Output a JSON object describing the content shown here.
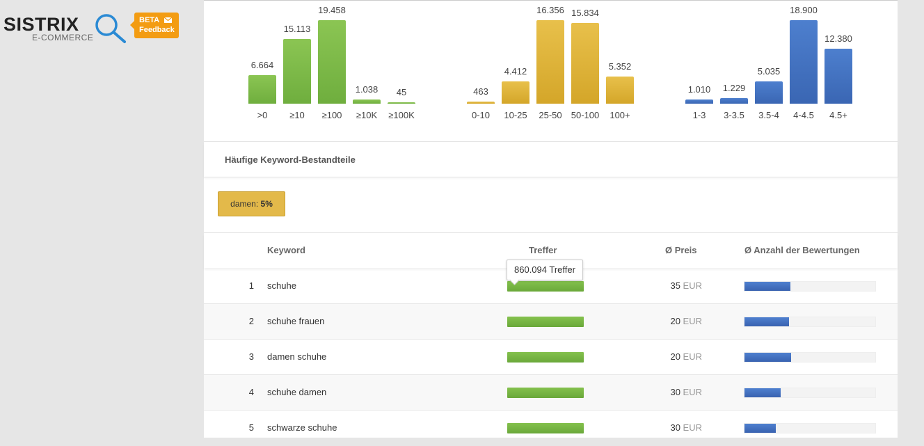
{
  "logo": {
    "name": "SISTRIX",
    "subtitle": "E-COMMERCE",
    "beta_label": "BETA",
    "feedback_label": "Feedback"
  },
  "chart_data": [
    {
      "type": "bar",
      "color": "#7ab648",
      "categories": [
        ">0",
        "≥10",
        "≥100",
        "≥10K",
        "≥100K"
      ],
      "values": [
        6664,
        15113,
        19458,
        1038,
        45
      ],
      "value_labels": [
        "6.664",
        "15.113",
        "19.458",
        "1.038",
        "45"
      ]
    },
    {
      "type": "bar",
      "color": "#deb33a",
      "categories": [
        "0-10",
        "10-25",
        "25-50",
        "50-100",
        "100+"
      ],
      "values": [
        463,
        4412,
        16356,
        15834,
        5352
      ],
      "value_labels": [
        "463",
        "4.412",
        "16.356",
        "15.834",
        "5.352"
      ]
    },
    {
      "type": "bar",
      "color": "#4472c4",
      "categories": [
        "1-3",
        "3-3.5",
        "3.5-4",
        "4-4.5",
        "4.5+"
      ],
      "values": [
        1010,
        1229,
        5035,
        18900,
        12380
      ],
      "value_labels": [
        "1.010",
        "1.229",
        "5.035",
        "18.900",
        "12.380"
      ]
    }
  ],
  "section": {
    "title": "Häufige Keyword-Bestandteile"
  },
  "tag": {
    "label": "damen:",
    "value": "5%"
  },
  "table": {
    "headers": {
      "keyword": "Keyword",
      "hits": "Treffer",
      "price": "Ø Preis",
      "ratings": "Ø Anzahl der Bewertungen"
    },
    "tooltip": "860.094 Treffer",
    "currency": "EUR",
    "rows": [
      {
        "rank": "1",
        "keyword": "schuhe",
        "hits_fraction": 1.0,
        "price": "35",
        "rating_fraction": 0.35
      },
      {
        "rank": "2",
        "keyword": "schuhe frauen",
        "hits_fraction": 1.0,
        "price": "20",
        "rating_fraction": 0.34
      },
      {
        "rank": "3",
        "keyword": "damen schuhe",
        "hits_fraction": 1.0,
        "price": "20",
        "rating_fraction": 0.355
      },
      {
        "rank": "4",
        "keyword": "schuhe damen",
        "hits_fraction": 1.0,
        "price": "30",
        "rating_fraction": 0.275
      },
      {
        "rank": "5",
        "keyword": "schwarze schuhe",
        "hits_fraction": 1.0,
        "price": "30",
        "rating_fraction": 0.24
      }
    ]
  }
}
